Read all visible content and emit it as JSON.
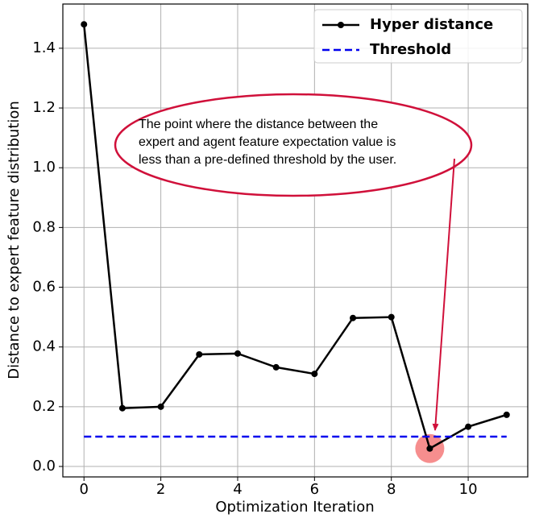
{
  "chart_data": {
    "type": "line",
    "x": [
      0,
      1,
      2,
      3,
      4,
      5,
      6,
      7,
      8,
      9,
      10,
      11
    ],
    "series": [
      {
        "name": "Hyper distance",
        "color": "#000000",
        "values": [
          1.48,
          0.195,
          0.2,
          0.375,
          0.378,
          0.332,
          0.31,
          0.497,
          0.5,
          0.06,
          0.133,
          0.173
        ]
      },
      {
        "name": "Threshold",
        "color": "#0000ee",
        "values": [
          0.1,
          0.1,
          0.1,
          0.1,
          0.1,
          0.1,
          0.1,
          0.1,
          0.1,
          0.1,
          0.1,
          0.1
        ]
      }
    ],
    "xlabel": "Optimization Iteration",
    "ylabel": "Distance to expert feature distribution",
    "xlim": [
      -0.55,
      11.55
    ],
    "ylim": [
      -0.035,
      1.548
    ],
    "xticks": [
      0,
      2,
      4,
      6,
      8,
      10
    ],
    "yticks": [
      {
        "value": 0,
        "label": "0.0"
      },
      0.2,
      0.4,
      0.6,
      0.8,
      {
        "value": 1,
        "label": "1.0"
      },
      1.2,
      1.4
    ],
    "grid": true,
    "legend": "upper right",
    "annotation": [
      "The point where the distance between the",
      "expert and agent feature expectation value is",
      "less than a pre-defined threshold by the user."
    ]
  }
}
